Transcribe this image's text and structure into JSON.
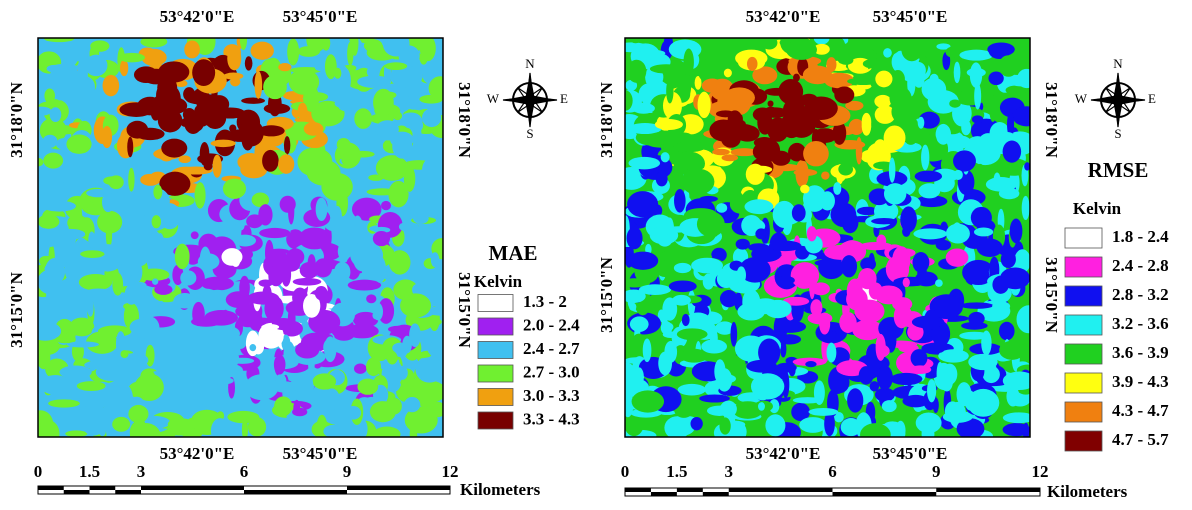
{
  "panels": [
    {
      "top_labels": [
        "53°42'0\"E",
        "53°45'0\"E"
      ],
      "bottom_labels": [
        "53°42'0\"E",
        "53°45'0\"E"
      ],
      "left_labels": [
        "31°18'0\"N",
        "31°15'0\"N"
      ],
      "right_labels": [
        "31°18'0\"N",
        "31°15'0\"N"
      ],
      "compass": {
        "n": "N",
        "s": "S",
        "w": "W",
        "e": "E"
      },
      "legend": {
        "title": "MAE",
        "unit": "Kelvin",
        "items": [
          {
            "label": "1.3 - 2",
            "color": "#ffffff"
          },
          {
            "label": "2.0 - 2.4",
            "color": "#a020f0"
          },
          {
            "label": "2.4 - 2.7",
            "color": "#40c0f0"
          },
          {
            "label": "2.7 - 3.0",
            "color": "#70f030"
          },
          {
            "label": "3.0 - 3.3",
            "color": "#f0a010"
          },
          {
            "label": "3.3 - 4.3",
            "color": "#780000"
          }
        ]
      },
      "scale": {
        "ticks": [
          "0",
          "1.5",
          "3",
          "6",
          "9",
          "12"
        ],
        "unit": "Kilometers"
      }
    },
    {
      "top_labels": [
        "53°42'0\"E",
        "53°45'0\"E"
      ],
      "bottom_labels": [
        "53°42'0\"E",
        "53°45'0\"E"
      ],
      "left_labels": [
        "31°18'0\"N",
        "31°15'0\"N"
      ],
      "right_labels": [
        "31°18'0\"N",
        "31°15'0\"N"
      ],
      "compass": {
        "n": "N",
        "s": "S",
        "w": "W",
        "e": "E"
      },
      "legend": {
        "title": "RMSE",
        "unit": "Kelvin",
        "items": [
          {
            "label": "1.8 - 2.4",
            "color": "#ffffff"
          },
          {
            "label": "2.4 - 2.8",
            "color": "#ff20e0"
          },
          {
            "label": "2.8 - 3.2",
            "color": "#1010f0"
          },
          {
            "label": "3.2 - 3.6",
            "color": "#20f0f0"
          },
          {
            "label": "3.6 - 3.9",
            "color": "#20d020"
          },
          {
            "label": "3.9 - 4.3",
            "color": "#ffff10"
          },
          {
            "label": "4.3 - 4.7",
            "color": "#f08010"
          },
          {
            "label": "4.7 - 5.7",
            "color": "#800000"
          }
        ]
      },
      "scale": {
        "ticks": [
          "0",
          "1.5",
          "3",
          "6",
          "9",
          "12"
        ],
        "unit": "Kilometers"
      }
    }
  ]
}
